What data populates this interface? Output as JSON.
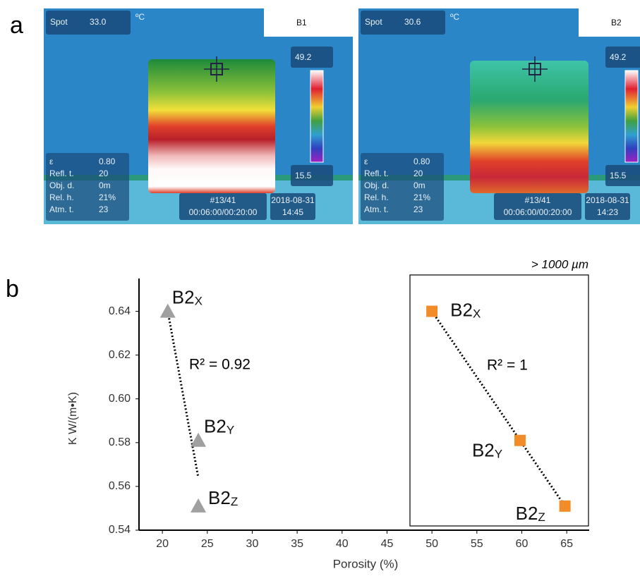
{
  "panel_labels": [
    "a",
    "b"
  ],
  "thermal_images": [
    {
      "spot_label": "Spot",
      "spot_value": "33.0",
      "unit": "ºC",
      "label": "B1",
      "scale_max": "49.2",
      "scale_min": "15.5",
      "params": [
        [
          "ε",
          "0.80"
        ],
        [
          "Refl. t.",
          "20"
        ],
        [
          "Obj. d.",
          "0m"
        ],
        [
          "Rel. h.",
          "21%"
        ],
        [
          "Atm. t.",
          "23"
        ]
      ],
      "frame": "#13/41",
      "time": "00:06:00/00:20:00",
      "date": "2018-08-31",
      "clock": "14:45"
    },
    {
      "spot_label": "Spot",
      "spot_value": "30.6",
      "unit": "ºC",
      "label": "B2",
      "scale_max": "49.2",
      "scale_min": "15.5",
      "params": [
        [
          "ε",
          "0.80"
        ],
        [
          "Refl. t.",
          "20"
        ],
        [
          "Obj. d.",
          "0m"
        ],
        [
          "Rel. h.",
          "21%"
        ],
        [
          "Atm. t.",
          "23"
        ]
      ],
      "frame": "#13/41",
      "time": "00:06:00/00:20:00",
      "date": "2018-08-31",
      "clock": "14:23"
    }
  ],
  "chart_data": {
    "type": "scatter",
    "xlabel": "Porosity (%)",
    "ylabel": "K W/(m•K)",
    "xlim": [
      17.4,
      67.5
    ],
    "ylim": [
      0.54,
      0.655
    ],
    "xticks": [
      20,
      25,
      30,
      35,
      40,
      45,
      50,
      55,
      60,
      65
    ],
    "yticks": [
      0.54,
      0.56,
      0.58,
      {
        "value": 0.6,
        "label": "0.60"
      },
      0.62,
      0.64
    ],
    "series": [
      {
        "marker": "triangle",
        "color": "#a0a0a0",
        "x": [
          20.6,
          24.0,
          24.0
        ],
        "values": [
          0.64,
          0.581,
          0.551
        ],
        "point_labels": [
          [
            "B2",
            "X"
          ],
          [
            "B2",
            "Y"
          ],
          [
            "B2",
            "Z"
          ]
        ]
      },
      {
        "marker": "square",
        "color": "#f28c28",
        "x": [
          50.0,
          59.8,
          64.8
        ],
        "values": [
          0.64,
          0.581,
          0.551
        ],
        "point_labels": [
          [
            "B2",
            "X"
          ],
          [
            "B2",
            "Y"
          ],
          [
            "B2",
            "Z"
          ]
        ]
      }
    ],
    "trendlines": [
      {
        "x": [
          20.6,
          24.0
        ],
        "y": [
          0.64,
          0.564
        ],
        "annotation": "R² = 0.92"
      },
      {
        "x": [
          50.0,
          64.8
        ],
        "y": [
          0.64,
          0.551
        ],
        "annotation": "R² = 1"
      }
    ],
    "inset_label": "> 1000 µm"
  }
}
